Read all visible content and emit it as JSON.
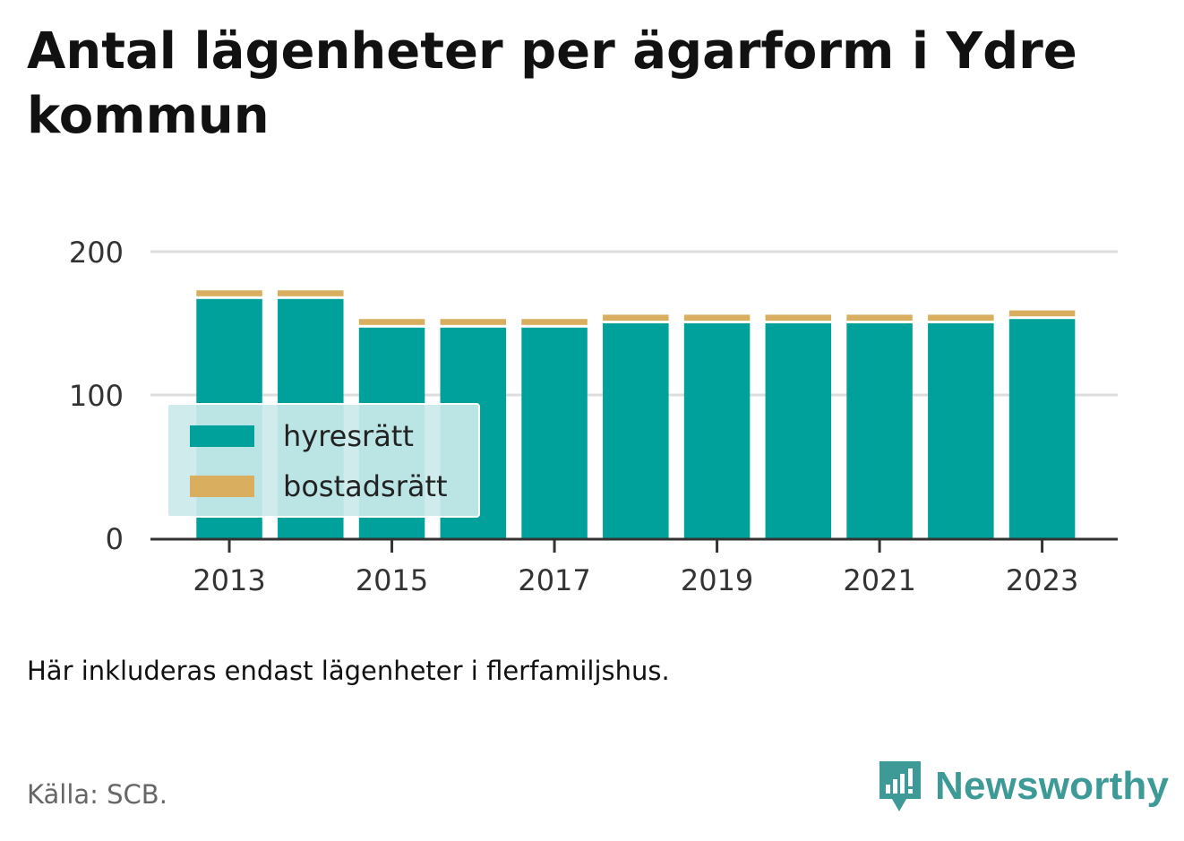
{
  "header": {
    "title": "Antal lägenheter per ägarform i Ydre kommun"
  },
  "chart_data": {
    "type": "bar",
    "stacked": true,
    "title": "Antal lägenheter per ägarform i Ydre kommun",
    "x": [
      2013,
      2014,
      2015,
      2016,
      2017,
      2018,
      2019,
      2020,
      2021,
      2022,
      2023
    ],
    "x_tick_labels": [
      "2013",
      "2015",
      "2017",
      "2019",
      "2021",
      "2023"
    ],
    "series": [
      {
        "name": "hyresrätt",
        "color": "#00a19a",
        "values": [
          167,
          167,
          147,
          147,
          147,
          150,
          150,
          150,
          150,
          150,
          153
        ]
      },
      {
        "name": "bostadsrätt",
        "color": "#d9ae5f",
        "values": [
          6,
          6,
          6,
          6,
          6,
          6,
          6,
          6,
          6,
          6,
          6
        ]
      }
    ],
    "ylim": [
      0,
      200
    ],
    "y_ticks": [
      0,
      100,
      200
    ],
    "grid": true,
    "legend_position": "bottom-left"
  },
  "footer": {
    "note": "Här inkluderas endast lägenheter i flerfamiljshus.",
    "source": "Källa: SCB.",
    "brand": "Newsworthy",
    "brand_icon": "newsworthy-logo-icon",
    "brand_color": "#3d9a96"
  }
}
